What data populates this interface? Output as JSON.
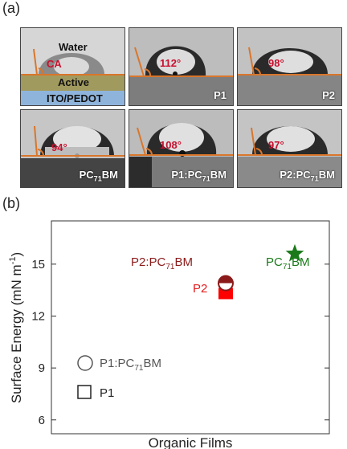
{
  "panel_a": {
    "label": "(a)",
    "schematic": {
      "water": "Water",
      "ca": "CA",
      "active": "Active",
      "substrate": "ITO/PEDOT"
    },
    "films": [
      {
        "name": "P1",
        "angle": "112°"
      },
      {
        "name": "P2",
        "angle": "98°"
      },
      {
        "name": "PC71BM",
        "angle": "94°"
      },
      {
        "name": "P1:PC71BM",
        "angle": "108°"
      },
      {
        "name": "P2:PC71BM",
        "angle": "97°"
      }
    ]
  },
  "panel_b": {
    "label": "(b)"
  },
  "chart_data": {
    "type": "scatter",
    "xlabel": "Organic Films",
    "ylabel": "Surface Energy (mN m-1)",
    "ylim": [
      5.2,
      17.5
    ],
    "yticks": [
      6,
      9,
      12,
      15
    ],
    "series": [
      {
        "name": "P1",
        "marker": "square",
        "color": "#ff0000",
        "y": 13.3,
        "label": "P2"
      },
      {
        "name": "P2",
        "marker": "square",
        "color": "#ff0000",
        "y": 13.3
      },
      {
        "name": "PC71BM",
        "marker": "star",
        "color": "#1a7a1a",
        "y": 15.6,
        "label": "PC71BM"
      },
      {
        "name": "P1:PC71BM",
        "marker": "circle",
        "color": "#8b1a1a",
        "y": 13.9
      },
      {
        "name": "P2:PC71BM",
        "marker": "circle",
        "color": "#8b1a1a",
        "y": 13.9,
        "label": "P2:PC71BM"
      }
    ],
    "legend": {
      "position": "bottom-left",
      "entries": [
        {
          "marker": "circle",
          "label": "P1:PC71BM"
        },
        {
          "marker": "square",
          "label": "P1"
        }
      ]
    },
    "colors": {
      "p2_label": "#e41a1c",
      "blend_label": "#8b1a1a",
      "pcbm_label": "#1a7a1a"
    }
  }
}
